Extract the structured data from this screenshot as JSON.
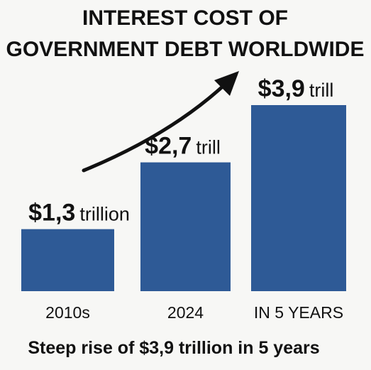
{
  "chart_data": {
    "type": "bar",
    "title_lines": [
      "INTEREST COST OF",
      "GOVERNMENT DEBT WORLDWIDE"
    ],
    "categories": [
      "2010s",
      "2024",
      "IN 5 YEARS"
    ],
    "values": [
      1.3,
      2.7,
      3.9
    ],
    "unit": "trillion USD",
    "data_labels": [
      {
        "amount": "$1,3",
        "unit": "trillion"
      },
      {
        "amount": "$2,7",
        "unit": "trill"
      },
      {
        "amount": "$3,9",
        "unit": "trill"
      }
    ],
    "caption": "Steep rise of $3,9 trillion in 5 years",
    "bar_color": "#2e5a96",
    "arrow_color": "#111111",
    "grid": false,
    "ylim": [
      0,
      3.9
    ]
  }
}
